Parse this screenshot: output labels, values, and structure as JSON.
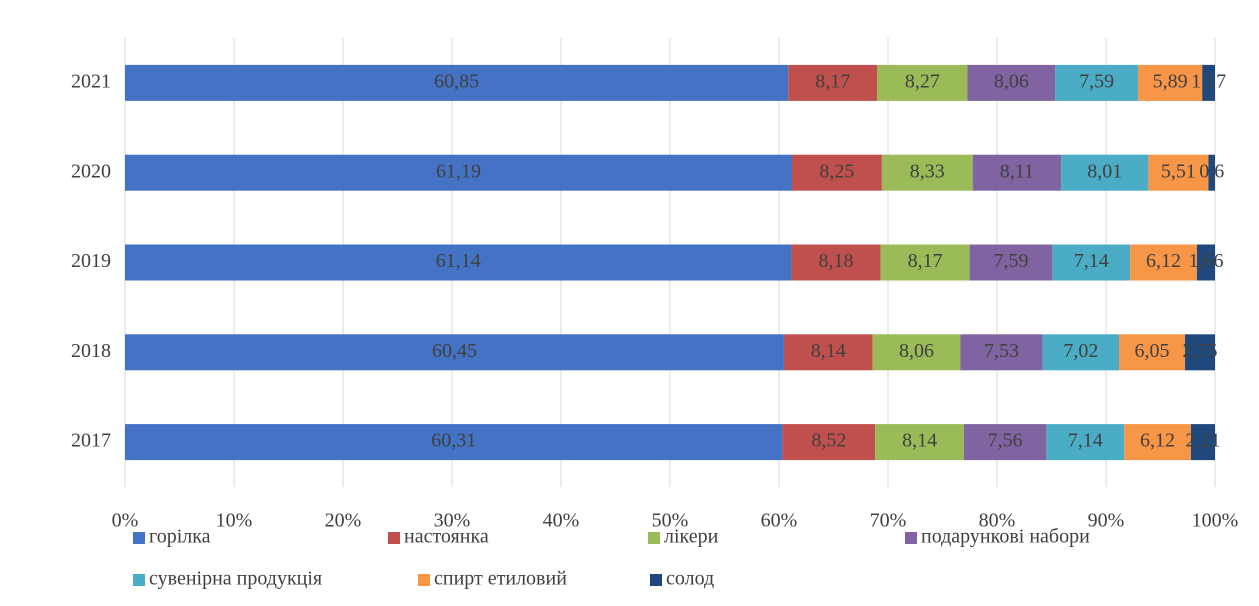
{
  "chart_data": {
    "type": "stacked_barh",
    "categories": [
      "2021",
      "2020",
      "2019",
      "2018",
      "2017"
    ],
    "series": [
      {
        "name": "горілка",
        "color": "#4472c4",
        "values": [
          60.85,
          61.19,
          61.14,
          60.45,
          60.31
        ],
        "value_labels": [
          "60,85",
          "61,19",
          "61,14",
          "60,45",
          "60,31"
        ]
      },
      {
        "name": "настоянка",
        "color": "#c0504d",
        "values": [
          8.17,
          8.25,
          8.18,
          8.14,
          8.52
        ],
        "value_labels": [
          "8,17",
          "8,25",
          "8,18",
          "8,14",
          "8,52"
        ]
      },
      {
        "name": "лікери",
        "color": "#9bbb59",
        "values": [
          8.27,
          8.33,
          8.17,
          8.06,
          8.14
        ],
        "value_labels": [
          "8,27",
          "8,33",
          "8,17",
          "8,06",
          "8,14"
        ]
      },
      {
        "name": "подарункові набори",
        "color": "#8064a2",
        "values": [
          8.06,
          8.11,
          7.59,
          7.53,
          7.56
        ],
        "value_labels": [
          "8,06",
          "8,11",
          "7,59",
          "7,53",
          "7,56"
        ]
      },
      {
        "name": "сувенірна продукція",
        "color": "#4bacc6",
        "values": [
          7.59,
          8.01,
          7.14,
          7.02,
          7.14
        ],
        "value_labels": [
          "7,59",
          "8,01",
          "7,14",
          "7,02",
          "7,14"
        ]
      },
      {
        "name": "спирт етиловий",
        "color": "#f79646",
        "values": [
          5.89,
          5.51,
          6.12,
          6.05,
          6.12
        ],
        "value_labels": [
          "5,89",
          "5,51",
          "6,12",
          "6,05",
          "6,12"
        ]
      },
      {
        "name": "солод",
        "color": "#1f497d",
        "values": [
          1.17,
          0.6,
          1.66,
          2.75,
          2.21
        ],
        "value_labels": [
          "1,17",
          "0,6",
          "1,66",
          "2,75",
          "2,21"
        ]
      }
    ],
    "xlim": [
      0,
      100
    ],
    "xticks": [
      {
        "value": 0,
        "label": "0%"
      },
      {
        "value": 10,
        "label": "10%"
      },
      {
        "value": 20,
        "label": "20%"
      },
      {
        "value": 30,
        "label": "30%"
      },
      {
        "value": 40,
        "label": "40%"
      },
      {
        "value": 50,
        "label": "50%"
      },
      {
        "value": 60,
        "label": "60%"
      },
      {
        "value": 70,
        "label": "70%"
      },
      {
        "value": 80,
        "label": "80%"
      },
      {
        "value": 90,
        "label": "90%"
      },
      {
        "value": 100,
        "label": "100%"
      }
    ],
    "grid": true
  }
}
